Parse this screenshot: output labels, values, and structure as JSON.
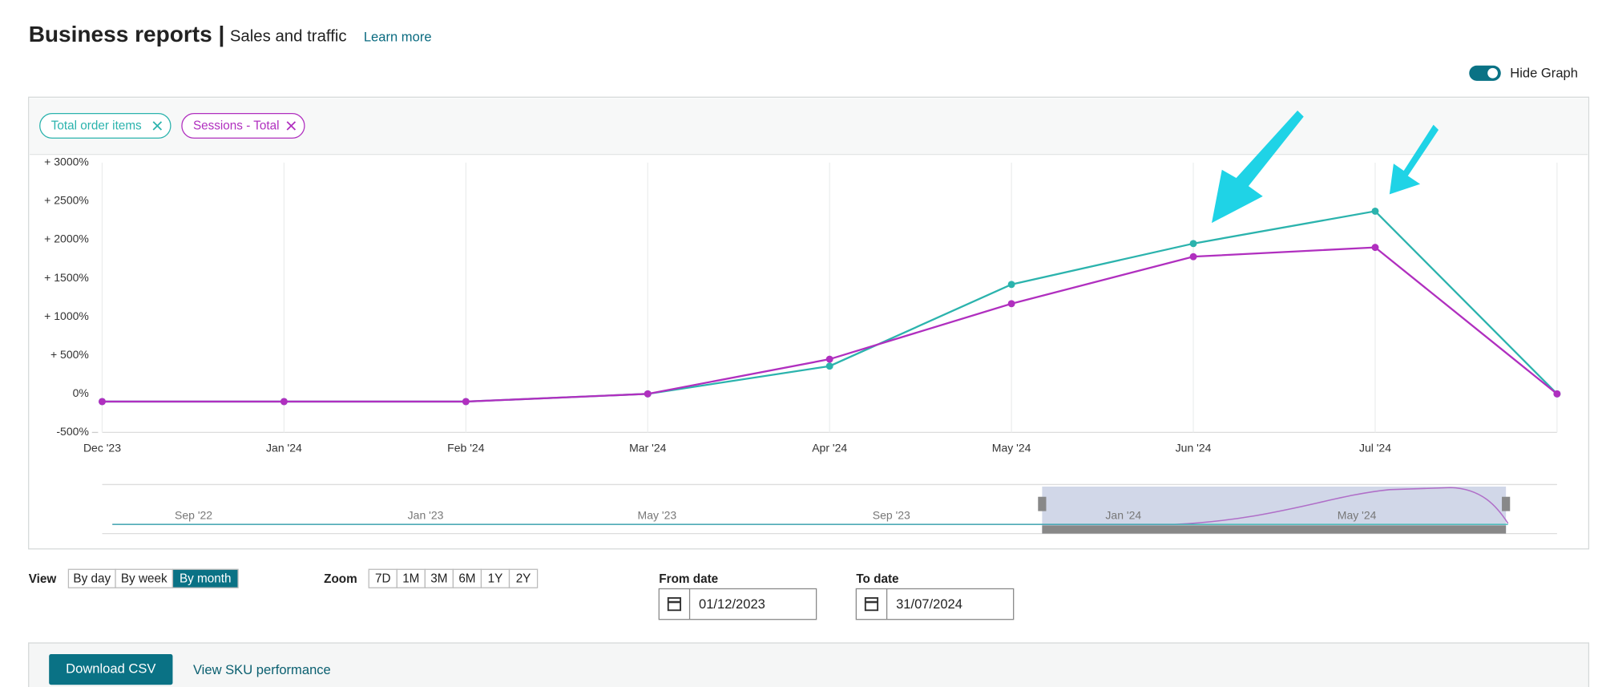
{
  "header": {
    "title": "Business reports |",
    "subtitle": "Sales and traffic",
    "link": "Learn more"
  },
  "toggle": {
    "label": "Hide Graph",
    "on": true
  },
  "chart_data": {
    "type": "line",
    "categories": [
      "Dec '23",
      "Jan '24",
      "Feb '24",
      "Mar '24",
      "Apr '24",
      "May '24",
      "Jun '24",
      "Jul '24",
      null
    ],
    "series": [
      {
        "name": "Total order items",
        "color": "#2bb3ad",
        "values": [
          -100,
          -100,
          -100,
          0,
          360,
          1420,
          1950,
          2370,
          0
        ]
      },
      {
        "name": "Sessions - Total",
        "color": "#b02fbf",
        "values": [
          -100,
          -100,
          -100,
          0,
          450,
          1170,
          1780,
          1900,
          0
        ]
      }
    ],
    "ylim": [
      -500,
      3000
    ],
    "yticks": [
      {
        "value": -500,
        "label": "-500%"
      },
      {
        "value": 0,
        "label": "0%"
      },
      {
        "value": 500,
        "label": "+ 500%"
      },
      {
        "value": 1000,
        "label": "+ 1000%"
      },
      {
        "value": 1500,
        "label": "+ 1500%"
      },
      {
        "value": 2000,
        "label": "+ 2000%"
      },
      {
        "value": 2500,
        "label": "+ 2500%"
      },
      {
        "value": 3000,
        "label": "+ 3000%"
      }
    ],
    "grid": true
  },
  "navigator": {
    "labels": [
      "Sep '22",
      "Jan '23",
      "May '23",
      "Sep '23",
      "Jan '24",
      "May '24"
    ]
  },
  "view": {
    "label": "View",
    "options": [
      "By day",
      "By week",
      "By month"
    ],
    "selected": 2
  },
  "zoom": {
    "label": "Zoom",
    "options": [
      "7D",
      "1M",
      "3M",
      "6M",
      "1Y",
      "2Y"
    ]
  },
  "from_date": {
    "label": "From date",
    "value": "01/12/2023"
  },
  "to_date": {
    "label": "To date",
    "value": "31/07/2024"
  },
  "actions": {
    "download": "Download CSV",
    "sku": "View SKU performance"
  }
}
